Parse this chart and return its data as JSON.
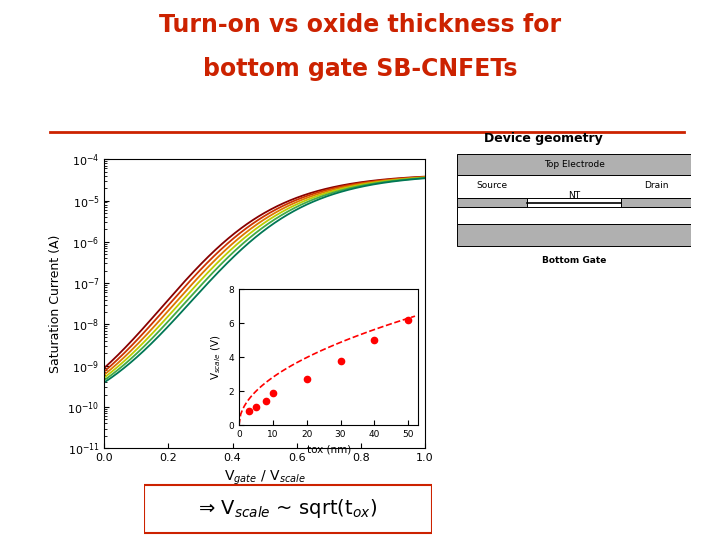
{
  "title_line1": "Turn-on vs oxide thickness for",
  "title_line2": "bottom gate SB-CNFETs",
  "title_color": "#CC2200",
  "title_fontsize": 17,
  "separator_color": "#CC2200",
  "xlabel": "V$_{gate}$ / V$_{scale}$",
  "ylabel": "Saturation Current (A)",
  "xlim": [
    0.0,
    1.0
  ],
  "ylim_log": [
    -11,
    -4
  ],
  "xticks": [
    0.0,
    0.2,
    0.4,
    0.6,
    0.8,
    1.0
  ],
  "curve_colors": [
    "#880000",
    "#CC3300",
    "#DD7700",
    "#BBCC00",
    "#44AA44",
    "#007755"
  ],
  "device_geometry_label": "Device geometry",
  "inset_xlabel": "tox (nm)",
  "inset_ylabel": "V$_{scale}$ (V)",
  "inset_xticks": [
    0,
    10,
    20,
    30,
    40,
    50
  ],
  "inset_yticks": [
    0,
    2,
    4,
    6,
    8
  ],
  "inset_tox": [
    3,
    5,
    8,
    10,
    20,
    30,
    40,
    50
  ],
  "inset_vscale": [
    0.85,
    1.05,
    1.4,
    1.9,
    2.7,
    3.8,
    5.0,
    6.2
  ],
  "annotation_text": "⇒ V$_{scale}$ ~ sqrt(t$_{ox}$)",
  "annotation_fontsize": 14,
  "annotation_box_color": "#CC2200",
  "background_color": "#FFFFFF"
}
